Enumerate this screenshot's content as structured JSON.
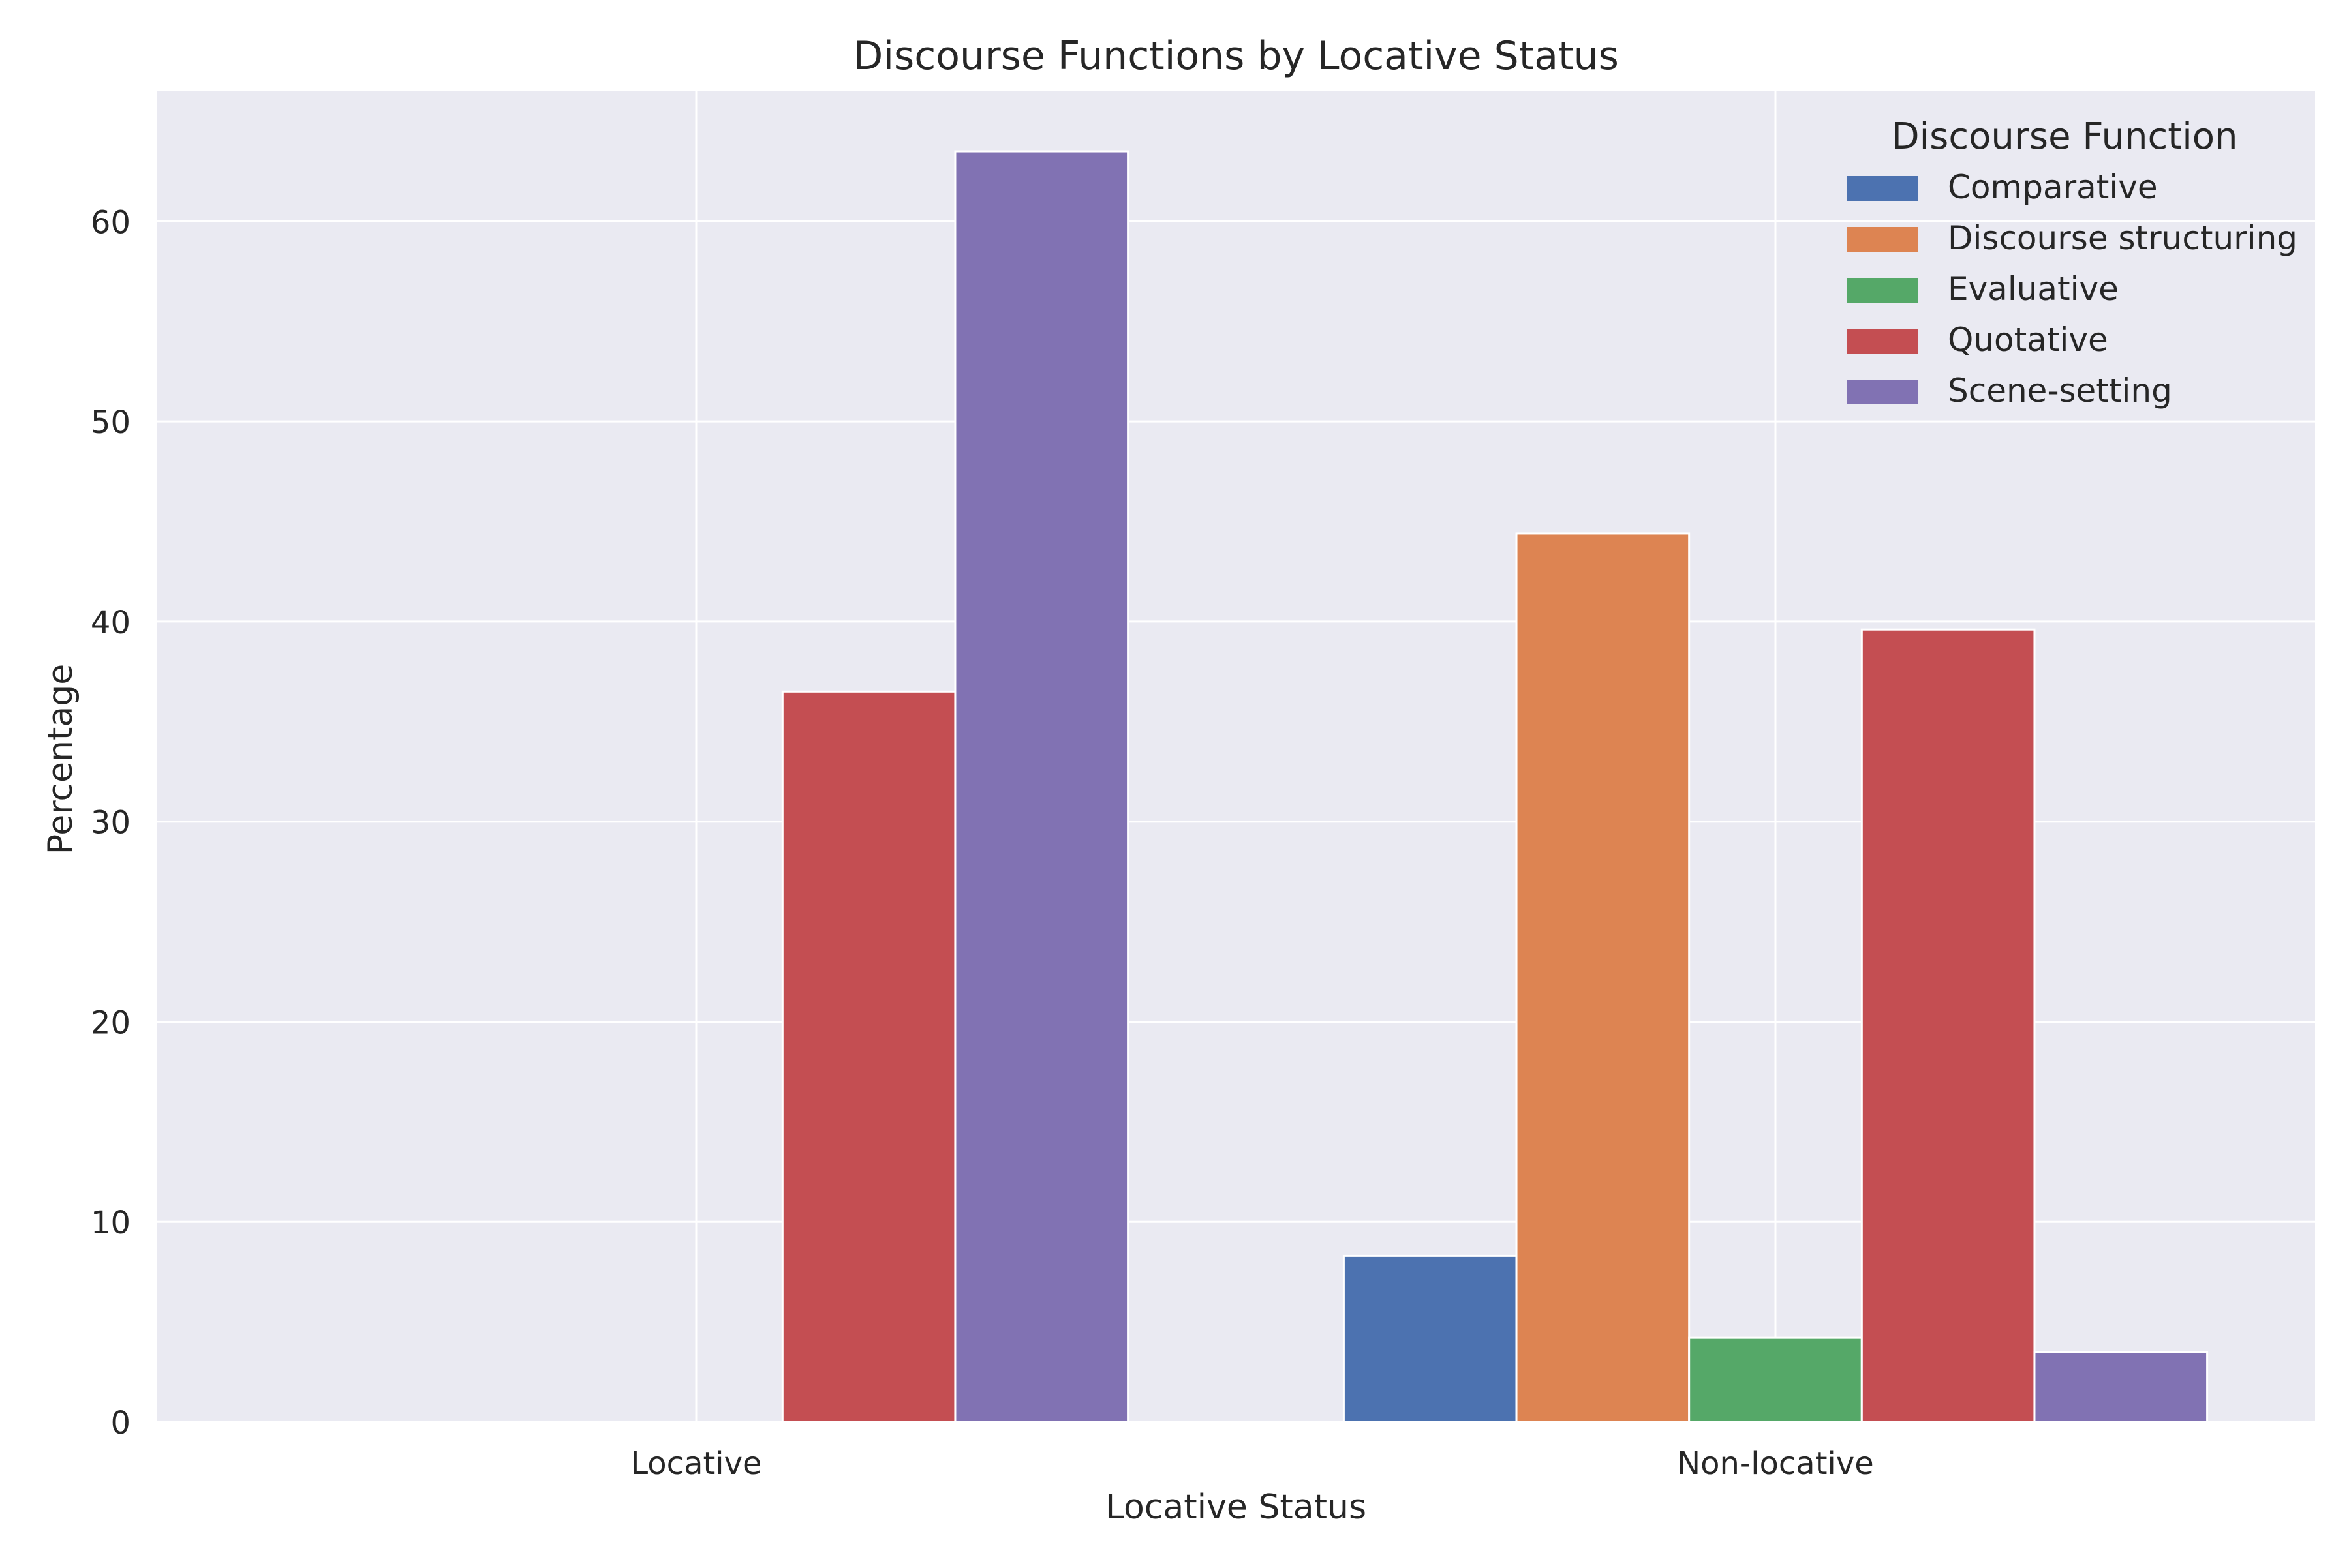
{
  "chart_data": {
    "type": "bar",
    "title": "Discourse Functions by Locative Status",
    "xlabel": "Locative Status",
    "ylabel": "Percentage",
    "categories": [
      "Locative",
      "Non-locative"
    ],
    "ylim": [
      0,
      66.5
    ],
    "yticks": [
      0,
      10,
      20,
      30,
      40,
      50,
      60
    ],
    "grid": true,
    "legend": {
      "title": "Discourse Function",
      "placement": "top-right"
    },
    "series": [
      {
        "name": "Comparative",
        "color": "#4c72b0",
        "values": [
          0,
          8.3
        ]
      },
      {
        "name": "Discourse structuring",
        "color": "#dd8452",
        "values": [
          0,
          44.4
        ]
      },
      {
        "name": "Evaluative",
        "color": "#55a868",
        "values": [
          0,
          4.2
        ]
      },
      {
        "name": "Quotative",
        "color": "#c44e52",
        "values": [
          36.5,
          39.6
        ]
      },
      {
        "name": "Scene-setting",
        "color": "#8172b3",
        "values": [
          63.5,
          3.5
        ]
      }
    ],
    "colors": {
      "plot_background": "#eaeaf2",
      "grid": "#ffffff",
      "text": "#262626"
    }
  }
}
